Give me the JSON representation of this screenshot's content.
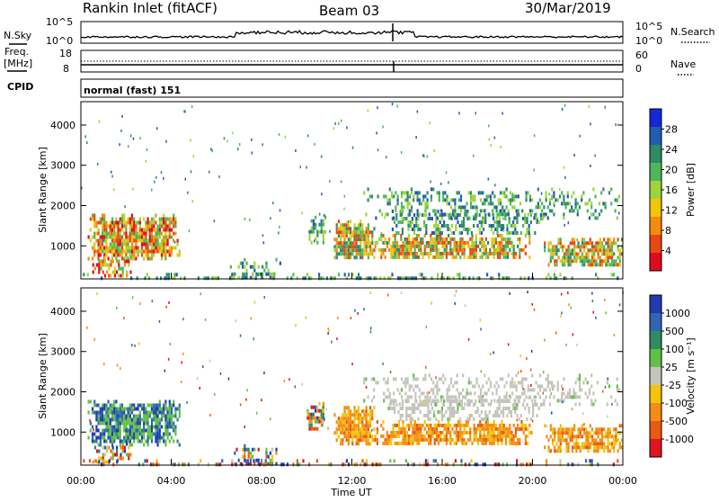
{
  "header": {
    "station": "Rankin Inlet (fitACF)",
    "beam": "Beam 03",
    "date": "30/Mar/2019"
  },
  "mini_panels": {
    "nsky_label": "N.Sky",
    "nsearch_label": "N.Search",
    "freq_label_1": "Freq.",
    "freq_label_2": "[MHz]",
    "nave_label": "Nave",
    "cpid_label": "CPID",
    "cpid_text": "normal (fast) 151",
    "noise_ticks_left": [
      "10^5",
      "10^0"
    ],
    "noise_ticks_right": [
      "10^5",
      "10^0"
    ],
    "freq_ticks_left": [
      "18",
      "8"
    ],
    "freq_ticks_right": [
      "60",
      "0"
    ]
  },
  "chart_data": [
    {
      "type": "heatmap",
      "name": "power",
      "ylabel": "Slant Range [km]",
      "yticks": [
        "4000",
        "3000",
        "2000",
        "1000"
      ],
      "ylim": [
        180,
        4580
      ],
      "colorbar_label": "Power [dB]",
      "colorbar_ticks": [
        "28",
        "24",
        "20",
        "16",
        "12",
        "8",
        "4"
      ],
      "colorbar_colors": [
        "#1428d8",
        "#235ab4",
        "#2f8a68",
        "#4db85a",
        "#9ed43a",
        "#f2c40a",
        "#f58a0f",
        "#e84812",
        "#e00a1e"
      ]
    },
    {
      "type": "heatmap",
      "name": "velocity",
      "ylabel": "Slant Range [km]",
      "yticks": [
        "4000",
        "3000",
        "2000",
        "1000"
      ],
      "ylim": [
        180,
        4580
      ],
      "colorbar_label": "Velocity [m s⁻¹]",
      "colorbar_ticks": [
        "1000",
        "500",
        "100",
        "25",
        "-25",
        "-100",
        "-500",
        "-1000"
      ],
      "colorbar_colors": [
        "#1e3cb0",
        "#2f66b4",
        "#2e8c5e",
        "#62c046",
        "#c4c4bc",
        "#f2c40a",
        "#f58c14",
        "#e85a12",
        "#e0141e"
      ],
      "xlabel": "Time UT",
      "xticks": [
        "00:00",
        "04:00",
        "08:00",
        "12:00",
        "16:00",
        "20:00",
        "00:00"
      ]
    }
  ]
}
